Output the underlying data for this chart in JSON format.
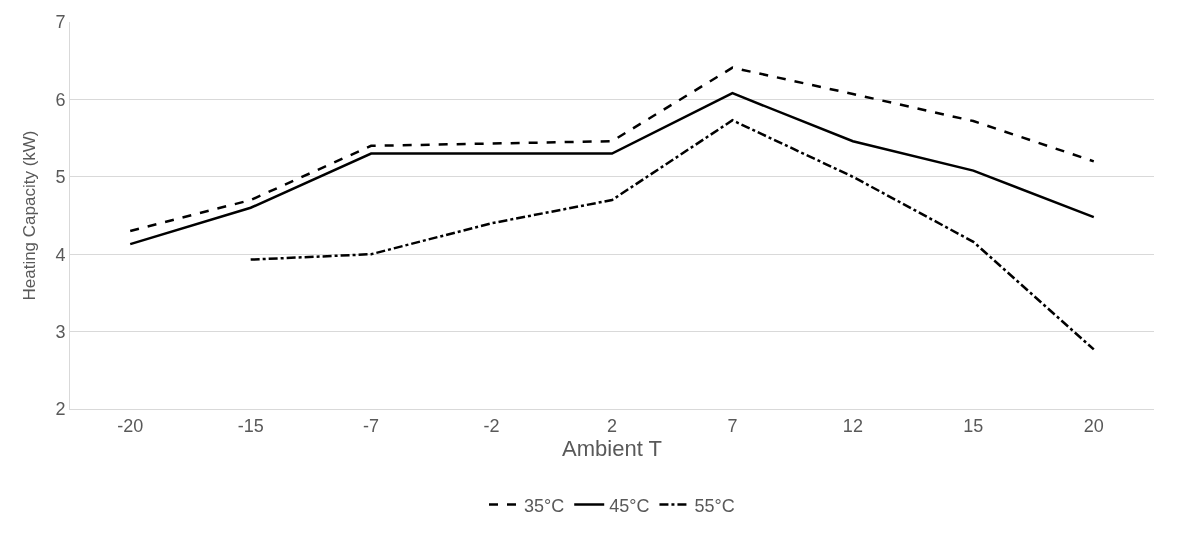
{
  "chart_data": {
    "type": "line",
    "xlabel": "Ambient T",
    "ylabel": "Heating Capacity (kW)",
    "categories": [
      "-20",
      "-15",
      "-7",
      "-2",
      "2",
      "7",
      "12",
      "15",
      "20"
    ],
    "series": [
      {
        "name": "35°C",
        "color": "#000000",
        "line_style": "dashed",
        "values": [
          4.3,
          4.7,
          5.4,
          5.43,
          5.46,
          6.41,
          6.07,
          5.72,
          5.2
        ]
      },
      {
        "name": "45°C",
        "color": "#000000",
        "line_style": "solid",
        "values": [
          4.13,
          4.6,
          5.3,
          5.3,
          5.3,
          6.08,
          5.46,
          5.08,
          4.48
        ]
      },
      {
        "name": "55°C",
        "color": "#000000",
        "line_style": "dashdot",
        "values": [
          null,
          3.93,
          4.0,
          4.4,
          4.7,
          5.73,
          5.0,
          4.16,
          2.77
        ]
      }
    ],
    "ylim": [
      2,
      7
    ],
    "yticks": [
      2,
      3,
      4,
      5,
      6,
      7
    ],
    "grid": "y",
    "legend": "bottom",
    "marker": "none"
  }
}
